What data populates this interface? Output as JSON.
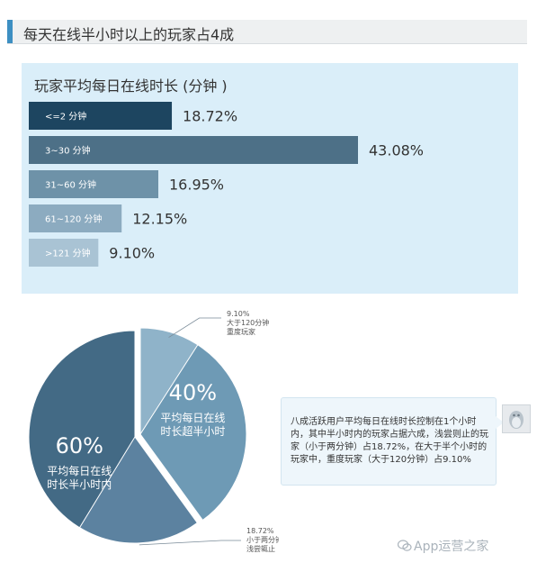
{
  "page_title": "每天在线半小时以上的玩家占4成",
  "chart_data": [
    {
      "type": "bar",
      "orientation": "horizontal",
      "title": "玩家平均每日在线时长 (分钟 )",
      "categories": [
        "<=2 分钟",
        "3~30 分钟",
        "31~60 分钟",
        "61~120 分钟",
        ">121 分钟"
      ],
      "values": [
        18.72,
        43.08,
        16.95,
        12.15,
        9.1
      ],
      "value_labels": [
        "18.72%",
        "43.08%",
        "16.95%",
        "12.15%",
        "9.10%"
      ],
      "unit": "%",
      "colors": [
        "#1d4560",
        "#4d7087",
        "#6e92a8",
        "#8cabc0",
        "#a9c3d4"
      ]
    },
    {
      "type": "pie",
      "slices": [
        {
          "name": "平均每日在线时长超半小时",
          "value": 40,
          "label_pct": "40%",
          "label_text": "平均每日在线\n时长超半小时",
          "color": "#6e9ab5"
        },
        {
          "name": "平均每日在线时长半小时内",
          "value": 60,
          "label_pct": "60%",
          "label_text": "平均每日在线\n时长半小时内",
          "color": "#436a85"
        }
      ],
      "sub_slices": [
        {
          "value": 9.1,
          "annotation": "9.10%\n大于120分钟\n重度玩家",
          "color": "#8fb3c9"
        },
        {
          "value": 18.72,
          "annotation": "18.72%\n小于两分钟\n浅尝辄止",
          "color": "#5c82a0"
        }
      ]
    }
  ],
  "callout_text": "八成活跃用户平均每日在线时长控制在1个小时内，其中半小时内的玩家占据六成，浅尝则止的玩家（小于两分钟）占18.72%，在大于半个小时的玩家中，重度玩家（大于120分钟）占9.10%",
  "watermark": "App运营之家",
  "icons": {
    "avatar": "qq-penguin-icon",
    "watermark": "wechat-icon"
  }
}
